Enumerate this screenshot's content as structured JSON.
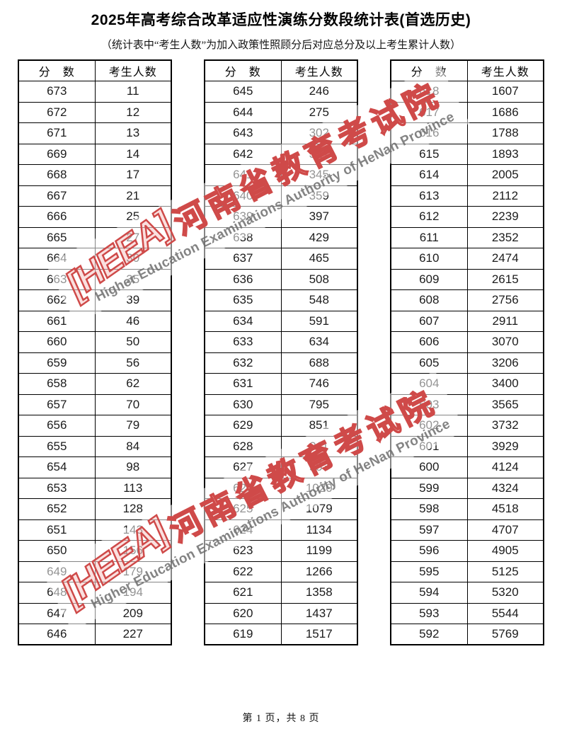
{
  "title": "2025年高考综合改革适应性演练分数段统计表(首选历史)",
  "subtitle": "（统计表中“考生人数”为加入政策性照顾分后对应总分及以上考生累计人数）",
  "table_headers": {
    "score": "分　数",
    "count": "考生人数"
  },
  "tables": [
    {
      "rows": [
        [
          673,
          11
        ],
        [
          672,
          12
        ],
        [
          671,
          13
        ],
        [
          669,
          14
        ],
        [
          668,
          17
        ],
        [
          667,
          21
        ],
        [
          666,
          25
        ],
        [
          665,
          27
        ],
        [
          664,
          30
        ],
        [
          663,
          35
        ],
        [
          662,
          39
        ],
        [
          661,
          46
        ],
        [
          660,
          50
        ],
        [
          659,
          56
        ],
        [
          658,
          62
        ],
        [
          657,
          70
        ],
        [
          656,
          79
        ],
        [
          655,
          84
        ],
        [
          654,
          98
        ],
        [
          653,
          113
        ],
        [
          652,
          128
        ],
        [
          651,
          143
        ],
        [
          650,
          156
        ],
        [
          649,
          179
        ],
        [
          648,
          194
        ],
        [
          647,
          209
        ],
        [
          646,
          227
        ]
      ]
    },
    {
      "rows": [
        [
          645,
          246
        ],
        [
          644,
          275
        ],
        [
          643,
          302
        ],
        [
          642,
          321
        ],
        [
          641,
          345
        ],
        [
          640,
          359
        ],
        [
          639,
          397
        ],
        [
          638,
          429
        ],
        [
          637,
          465
        ],
        [
          636,
          508
        ],
        [
          635,
          548
        ],
        [
          634,
          591
        ],
        [
          633,
          634
        ],
        [
          632,
          688
        ],
        [
          631,
          746
        ],
        [
          630,
          795
        ],
        [
          629,
          851
        ],
        [
          628,
          911
        ],
        [
          627,
          953
        ],
        [
          626,
          1020
        ],
        [
          625,
          1079
        ],
        [
          624,
          1134
        ],
        [
          623,
          1199
        ],
        [
          622,
          1266
        ],
        [
          621,
          1358
        ],
        [
          620,
          1437
        ],
        [
          619,
          1517
        ]
      ]
    },
    {
      "rows": [
        [
          618,
          1607
        ],
        [
          617,
          1686
        ],
        [
          616,
          1788
        ],
        [
          615,
          1893
        ],
        [
          614,
          2005
        ],
        [
          613,
          2112
        ],
        [
          612,
          2239
        ],
        [
          611,
          2352
        ],
        [
          610,
          2474
        ],
        [
          609,
          2615
        ],
        [
          608,
          2756
        ],
        [
          607,
          2911
        ],
        [
          606,
          3070
        ],
        [
          605,
          3206
        ],
        [
          604,
          3400
        ],
        [
          603,
          3565
        ],
        [
          602,
          3732
        ],
        [
          601,
          3929
        ],
        [
          600,
          4124
        ],
        [
          599,
          4324
        ],
        [
          598,
          4518
        ],
        [
          597,
          4707
        ],
        [
          596,
          4905
        ],
        [
          595,
          5125
        ],
        [
          594,
          5320
        ],
        [
          593,
          5544
        ],
        [
          592,
          5769
        ]
      ]
    }
  ],
  "watermark": {
    "logo_text": "[HEEA]",
    "text_cn": "河南省教育考试院",
    "text_en": "Higher Education Examinations Authority of HeNan Province",
    "color_red": "#cf4a49",
    "color_gray": "#6e6e6e"
  },
  "footer": {
    "page_text": "第 1 页，共 8 页"
  }
}
